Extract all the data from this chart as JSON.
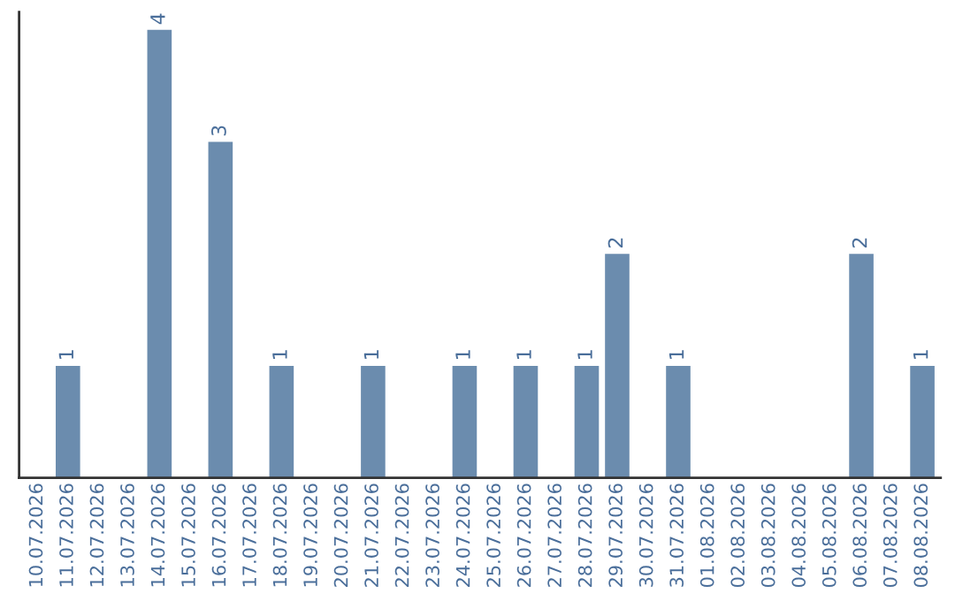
{
  "chart_data": {
    "type": "bar",
    "categories": [
      "10.07.2026",
      "11.07.2026",
      "12.07.2026",
      "13.07.2026",
      "14.07.2026",
      "15.07.2026",
      "16.07.2026",
      "17.07.2026",
      "18.07.2026",
      "19.07.2026",
      "20.07.2026",
      "21.07.2026",
      "22.07.2026",
      "23.07.2026",
      "24.07.2026",
      "25.07.2026",
      "26.07.2026",
      "27.07.2026",
      "28.07.2026",
      "29.07.2026",
      "30.07.2026",
      "31.07.2026",
      "01.08.2026",
      "02.08.2026",
      "03.08.2026",
      "04.08.2026",
      "05.08.2026",
      "06.08.2026",
      "07.08.2026",
      "08.08.2026"
    ],
    "values": [
      null,
      1,
      null,
      null,
      4,
      null,
      3,
      null,
      1,
      null,
      null,
      1,
      null,
      null,
      1,
      null,
      1,
      null,
      1,
      2,
      null,
      1,
      null,
      null,
      null,
      null,
      null,
      2,
      null,
      1
    ],
    "value_labels": [
      null,
      "1",
      null,
      null,
      "4",
      null,
      "3",
      null,
      "1",
      null,
      null,
      "1",
      null,
      null,
      "1",
      null,
      "1",
      null,
      "1",
      "2",
      null,
      "1",
      null,
      null,
      null,
      null,
      null,
      "2",
      null,
      "1"
    ],
    "color": "#6b8cae",
    "grid": false,
    "legend": false,
    "tick_labels": "x"
  }
}
